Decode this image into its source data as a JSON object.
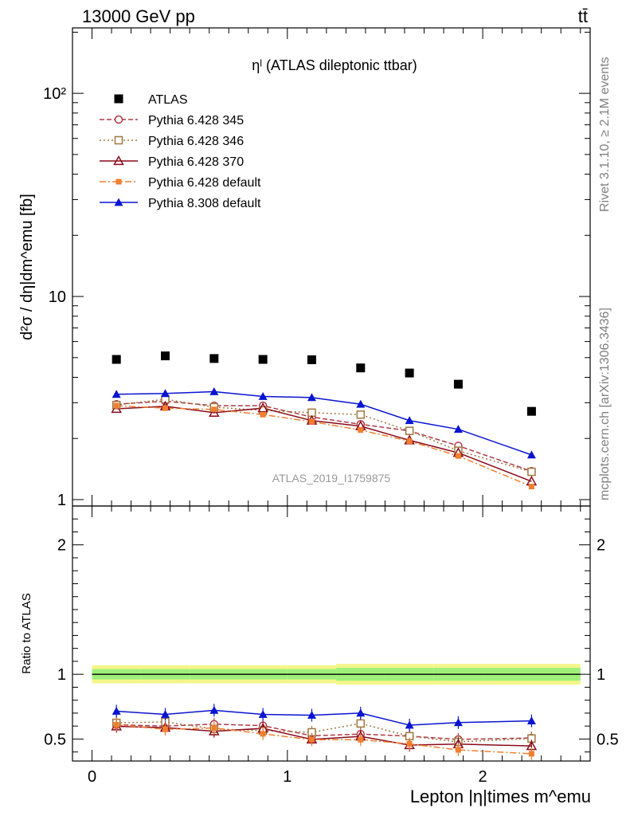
{
  "header": {
    "left": "13000 GeV pp",
    "right": "tt̄"
  },
  "side_labels": {
    "rivet": "Rivet 3.1.10, ≥ 2.1M events",
    "mcplots": "mcplots.cern.ch [arXiv:1306.3436]"
  },
  "chart_data": [
    {
      "type": "line",
      "title": "ηˡ (ATLAS dileptonic ttbar)",
      "ylabel": "d²σ / dη|dm^emu [fb]",
      "xlabel": "",
      "watermark": "ATLAS_2019_I1759875",
      "yscale": "log",
      "ylim": [
        0.93,
        210
      ],
      "xlim": [
        -0.1,
        2.55
      ],
      "x": [
        0.125,
        0.375,
        0.625,
        0.875,
        1.125,
        1.375,
        1.625,
        1.875,
        2.25
      ],
      "x_tick_labels": [
        "0",
        "1",
        "2"
      ],
      "y_tick_labels": [
        "1",
        "10",
        "10²"
      ],
      "legend_position": "top-left",
      "series": [
        {
          "name": "ATLAS",
          "color": "#000000",
          "marker": "square",
          "dash": "none",
          "values": [
            4.9,
            5.1,
            4.95,
            4.9,
            4.88,
            4.45,
            4.2,
            3.7,
            2.72
          ]
        },
        {
          "name": "Pythia 6.428 345",
          "color": "#b03a48",
          "marker": "circle-open",
          "dash": "6,3",
          "values": [
            2.95,
            3.05,
            2.9,
            2.9,
            2.55,
            2.35,
            2.18,
            1.84,
            1.38
          ]
        },
        {
          "name": "Pythia 6.428 346",
          "color": "#a07840",
          "marker": "square-open",
          "dash": "2,3",
          "values": [
            2.92,
            3.12,
            2.85,
            2.75,
            2.68,
            2.62,
            2.18,
            1.74,
            1.37
          ]
        },
        {
          "name": "Pythia 6.428 370",
          "color": "#8b0a1a",
          "marker": "triangle-open",
          "dash": "none",
          "values": [
            2.8,
            2.88,
            2.68,
            2.82,
            2.45,
            2.3,
            1.96,
            1.7,
            1.23
          ]
        },
        {
          "name": "Pythia 6.428 default",
          "color": "#f07f30",
          "marker": "square-small",
          "dash": "8,3,2,3",
          "values": [
            2.9,
            2.82,
            2.78,
            2.62,
            2.42,
            2.2,
            1.94,
            1.64,
            1.16
          ]
        },
        {
          "name": "Pythia 8.308 default",
          "color": "#0a14d0",
          "marker": "triangle",
          "dash": "none",
          "values": [
            3.3,
            3.33,
            3.4,
            3.22,
            3.18,
            2.95,
            2.45,
            2.22,
            1.66
          ]
        }
      ]
    },
    {
      "type": "line",
      "title": "",
      "ylabel": "Ratio to ATLAS",
      "xlabel": "Lepton |η|times m^emu",
      "yscale": "linear",
      "ylim": [
        0.33,
        2.3
      ],
      "xlim": [
        -0.1,
        2.55
      ],
      "x": [
        0.125,
        0.375,
        0.625,
        0.875,
        1.125,
        1.375,
        1.625,
        1.875,
        2.25
      ],
      "x_tick_labels": [
        "0",
        "1",
        "2"
      ],
      "y_tick_labels": [
        "0.5",
        "1",
        "2"
      ],
      "reference_line": 1,
      "band_inner": [
        0.04,
        0.04,
        0.04,
        0.04,
        0.04,
        0.05,
        0.05,
        0.05,
        0.05
      ],
      "band_outer": [
        0.07,
        0.07,
        0.07,
        0.07,
        0.07,
        0.08,
        0.08,
        0.08,
        0.08
      ],
      "series": [
        {
          "name": "Pythia 6.428 345",
          "color": "#b03a48",
          "marker": "circle-open",
          "dash": "6,3",
          "values": [
            0.61,
            0.6,
            0.615,
            0.603,
            0.525,
            0.538,
            0.522,
            0.497,
            0.508
          ]
        },
        {
          "name": "Pythia 6.428 346",
          "color": "#a07840",
          "marker": "square-open",
          "dash": "2,3",
          "values": [
            0.625,
            0.632,
            0.578,
            0.565,
            0.552,
            0.62,
            0.522,
            0.478,
            0.504
          ]
        },
        {
          "name": "Pythia 6.428 370",
          "color": "#8b0a1a",
          "marker": "triangle-open",
          "dash": "none",
          "values": [
            0.598,
            0.588,
            0.56,
            0.582,
            0.497,
            0.52,
            0.453,
            0.461,
            0.446
          ]
        },
        {
          "name": "Pythia 6.428 default",
          "color": "#f07f30",
          "marker": "square-small",
          "dash": "8,3,2,3",
          "values": [
            0.61,
            0.575,
            0.585,
            0.54,
            0.495,
            0.495,
            0.462,
            0.416,
            0.386
          ]
        },
        {
          "name": "Pythia 8.308 default",
          "color": "#0a14d0",
          "marker": "triangle",
          "dash": "none",
          "values": [
            0.715,
            0.69,
            0.722,
            0.69,
            0.684,
            0.7,
            0.607,
            0.627,
            0.64
          ]
        }
      ]
    }
  ]
}
